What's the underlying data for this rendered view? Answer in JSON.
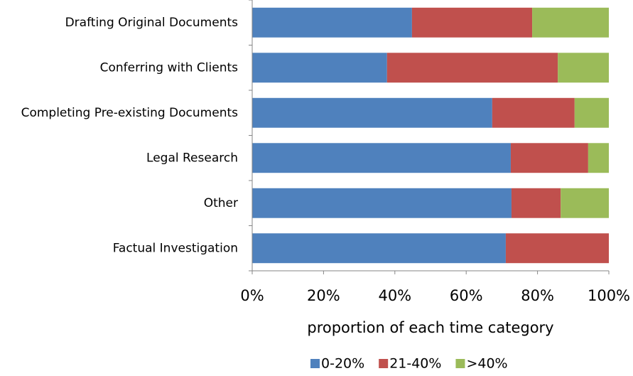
{
  "chart_data": {
    "type": "stacked_barh",
    "categories": [
      "Drafting Original Documents",
      "Conferring with Clients",
      "Completing Pre-existing Documents",
      "Legal Research",
      "Other",
      "Factual Investigation"
    ],
    "series": [
      {
        "name": "0-20%",
        "color": "#4f81bd",
        "values": [
          44.8,
          37.8,
          67.3,
          72.5,
          72.7,
          71.1
        ]
      },
      {
        "name": "21-40%",
        "color": "#c0504d",
        "values": [
          33.7,
          47.9,
          23.1,
          21.7,
          13.8,
          28.9
        ]
      },
      {
        "name": ">40%",
        "color": "#9bbb59",
        "values": [
          21.5,
          14.3,
          9.6,
          5.8,
          13.5,
          0
        ]
      }
    ],
    "xlabel": "proportion of each time category",
    "xlim": [
      0,
      100
    ],
    "xticks": [
      {
        "value": 0,
        "label": "0%"
      },
      {
        "value": 20,
        "label": "20%"
      },
      {
        "value": 40,
        "label": "40%"
      },
      {
        "value": 60,
        "label": "60%"
      },
      {
        "value": 80,
        "label": "80%"
      },
      {
        "value": 100,
        "label": "100%"
      }
    ],
    "legend": "bottom"
  }
}
